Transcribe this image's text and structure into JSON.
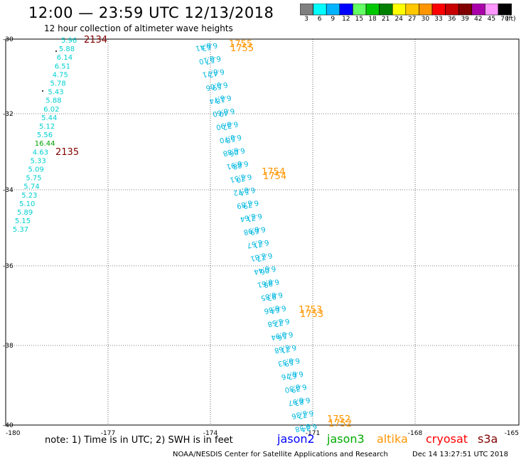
{
  "header": {
    "title": "12:00 — 23:59 UTC 12/13/2018",
    "subtitle": "12 hour collection of altimeter wave heights"
  },
  "colorbar": {
    "labels": [
      "3",
      "6",
      "9",
      "12",
      "15",
      "18",
      "21",
      "24",
      "27",
      "30",
      "33",
      "36",
      "39",
      "42",
      "45",
      "70"
    ],
    "unit": "(ft)",
    "colors": [
      "#808080",
      "#00ffff",
      "#00b4ff",
      "#0000ff",
      "#64ff64",
      "#00c800",
      "#008000",
      "#ffff00",
      "#ffc800",
      "#ff9600",
      "#ff0000",
      "#c80000",
      "#800000",
      "#aa00aa",
      "#ff96ff",
      "#000000"
    ]
  },
  "note": "note:  1) Time is in UTC;  2) SWH is in feet",
  "satellites": [
    {
      "name": "jason2",
      "color": "#0000ff"
    },
    {
      "name": "jason3",
      "color": "#00aa00"
    },
    {
      "name": "altika",
      "color": "#ff9600"
    },
    {
      "name": "cryosat",
      "color": "#ff0000"
    },
    {
      "name": "s3a",
      "color": "#800000"
    }
  ],
  "footer": {
    "credit": "NOAA/NESDIS Center for Satellite Applications and Research",
    "generated": "Dec 14 13:27:51 UTC 2018"
  },
  "axes": {
    "lon_ticks": [
      "-180",
      "-177",
      "-174",
      "-171",
      "-168",
      "-165"
    ],
    "lat_ticks": [
      "-30",
      "-32",
      "-34",
      "-36",
      "-38",
      "-40"
    ]
  },
  "track_west": {
    "color": "#00d0d0",
    "values": [
      "5.96",
      "5.88",
      "6.14",
      "6.51",
      "4.75",
      "5.78",
      "5.43",
      "5.88",
      "6.02",
      "5.44",
      "5.12",
      "5.56",
      "16.44",
      "4.63",
      "5.33",
      "5.09",
      "5.75",
      "5.74",
      "5.23",
      "5.10",
      "5.89",
      "5.15",
      "5.37"
    ],
    "outlier_index": 12,
    "outlier_color": "#00a000"
  },
  "time_labels_west": [
    {
      "text": "2134",
      "color": "#800000"
    },
    {
      "text": "2135",
      "color": "#800000"
    }
  ],
  "track_east": {
    "color": "#00b8e0",
    "pairs": [
      [
        "6.41",
        "6.63"
      ],
      [
        "6.10",
        "6.57"
      ],
      [
        "6.71",
        "6.42"
      ],
      [
        "6.06",
        "6.59"
      ],
      [
        "6.74",
        "6.18"
      ],
      [
        "6.60",
        "6.40"
      ],
      [
        "6.90",
        "6.32"
      ],
      [
        "6.70",
        "6.58"
      ],
      [
        "6.88",
        "6.06"
      ],
      [
        "6.91",
        "6.88"
      ],
      [
        "6.51",
        "6.70"
      ],
      [
        "6.72",
        "6.54"
      ],
      [
        "6.89",
        "6.79"
      ],
      [
        "6.64",
        "6.71"
      ],
      [
        "6.98",
        "6.69"
      ],
      [
        "6.57",
        "6.71"
      ],
      [
        "6.81",
        "6.77"
      ],
      [
        "6.44",
        "6.06"
      ],
      [
        "6.61",
        "6.98"
      ],
      [
        "6.85",
        "6.93"
      ],
      [
        "6.86",
        "6.64"
      ],
      [
        "6.58",
        "6.72"
      ],
      [
        "6.94",
        "6.56"
      ],
      [
        "6.68",
        "6.71"
      ],
      [
        "6.33",
        "6.59"
      ],
      [
        "6.76",
        "6.62"
      ],
      [
        "6.30",
        "6.39"
      ],
      [
        "6.97",
        "6.83"
      ],
      [
        "6.36",
        "6.72"
      ],
      [
        "6.38",
        "6.34"
      ]
    ]
  },
  "time_labels_east": [
    {
      "a": "1755",
      "b": "1755",
      "color": "#ff9600"
    },
    {
      "a": "1754",
      "b": "1754",
      "color": "#ff9600"
    },
    {
      "a": "1753",
      "b": "1753",
      "color": "#ff9600"
    },
    {
      "a": "1752",
      "b": "1752",
      "color": "#ff9600"
    }
  ]
}
